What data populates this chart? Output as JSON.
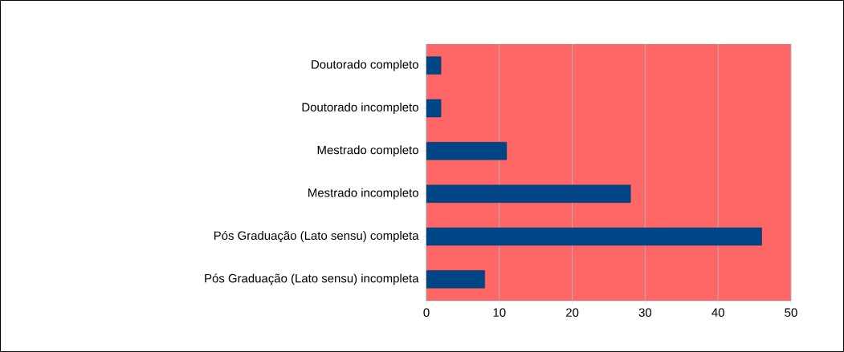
{
  "chart_data": {
    "type": "bar",
    "orientation": "horizontal",
    "categories": [
      "Doutorado completo",
      "Doutorado incompleto",
      "Mestrado completo",
      "Mestrado incompleto",
      "Pós Graduação (Lato sensu) completa",
      "Pós Graduação (Lato sensu) incompleta"
    ],
    "values": [
      2,
      2,
      11,
      28,
      46,
      8
    ],
    "color": "#004586",
    "xlim": [
      0,
      50
    ],
    "xticks": [
      0,
      10,
      20,
      30,
      40,
      50
    ],
    "grid": "x"
  }
}
